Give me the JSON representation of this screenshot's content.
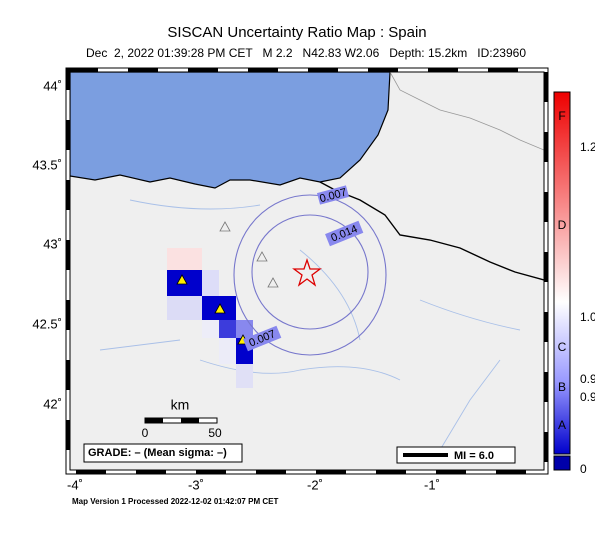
{
  "header": {
    "title": "SISCAN Uncertainty Ratio Map : Spain",
    "subtitle": "Dec  2, 2022 01:39:28 PM CET   M 2.2   N42.83 W2.06   Depth: 15.2km   ID:23960"
  },
  "map": {
    "lat_labels": [
      "44˚",
      "43.5˚",
      "43˚",
      "42.5˚",
      "42˚"
    ],
    "lon_labels": [
      "-4˚",
      "-3˚",
      "-2˚",
      "-1˚"
    ],
    "contour_labels": [
      "0.007",
      "0.014",
      "0.007"
    ],
    "scale_bar": {
      "unit": "km",
      "ticks": [
        "0",
        "50"
      ]
    },
    "grade": "GRADE: – (Mean sigma: –)",
    "mi_legend": "MI = 6.0"
  },
  "colorbar": {
    "letters": [
      "F",
      "D",
      "C",
      "B",
      "A"
    ],
    "values": [
      "1.2",
      "1.0",
      "0.9",
      "0.9",
      "0"
    ]
  },
  "footer": "Map Version 1 Processed 2022-12-02 01:42:07 PM CET"
}
